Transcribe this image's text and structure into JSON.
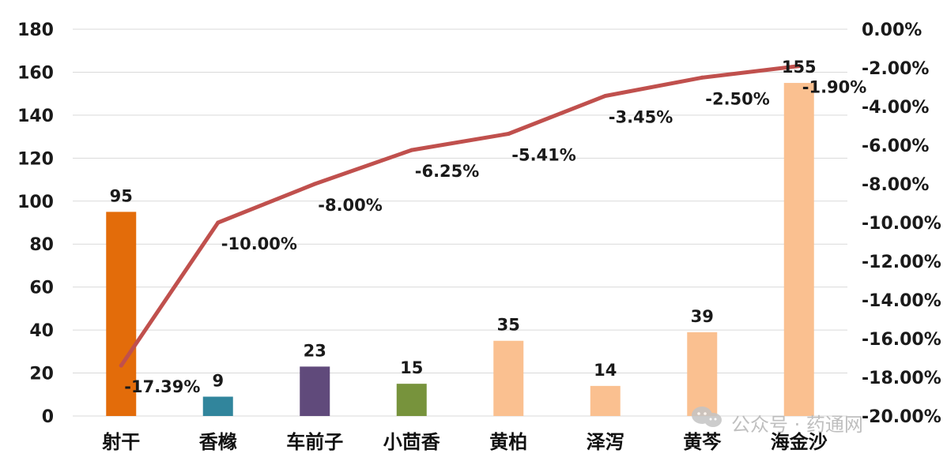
{
  "chart_data": {
    "type": "bar",
    "categories": [
      "射干",
      "香橼",
      "车前子",
      "小茴香",
      "黄柏",
      "泽泻",
      "黄芩",
      "海金沙"
    ],
    "series": [
      {
        "type": "bar",
        "axis": "left",
        "values": [
          95,
          9,
          23,
          15,
          35,
          14,
          39,
          155
        ],
        "colors": [
          "#E36C0A",
          "#31859C",
          "#604A7B",
          "#77933C",
          "#FAC090",
          "#FAC090",
          "#FAC090",
          "#FAC090"
        ],
        "labels": [
          "95",
          "9",
          "23",
          "15",
          "35",
          "14",
          "39",
          "155"
        ]
      },
      {
        "type": "line",
        "axis": "right",
        "color": "#C0504D",
        "values": [
          -17.39,
          -10.0,
          -8.0,
          -6.25,
          -5.41,
          -3.45,
          -2.5,
          -1.9
        ],
        "labels": [
          "-17.39%",
          "-10.00%",
          "-8.00%",
          "-6.25%",
          "-5.41%",
          "-3.45%",
          "-2.50%",
          "-1.90%"
        ]
      }
    ],
    "y_left": {
      "min": 0,
      "max": 180,
      "ticks": [
        "0",
        "20",
        "40",
        "60",
        "80",
        "100",
        "120",
        "140",
        "160",
        "180"
      ]
    },
    "y_right": {
      "min": -20,
      "max": 0,
      "ticks": [
        "-20.00%",
        "-18.00%",
        "-16.00%",
        "-14.00%",
        "-12.00%",
        "-10.00%",
        "-8.00%",
        "-6.00%",
        "-4.00%",
        "-2.00%",
        "0.00%"
      ]
    },
    "grid": true,
    "legend": "none"
  },
  "watermark": {
    "text": "公众号 · 药通网",
    "icon": "wechat-icon",
    "color": "#b5b5b5"
  }
}
